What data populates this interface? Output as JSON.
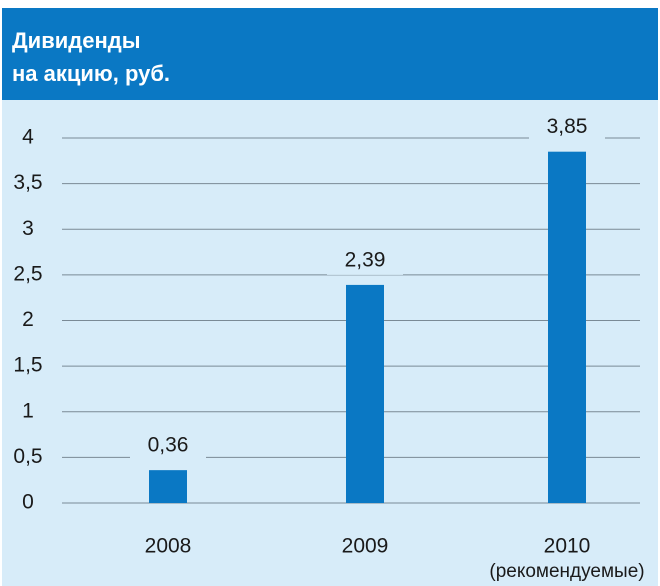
{
  "chart_data": {
    "type": "bar",
    "title_lines": [
      "Дивиденды",
      "на акцию, руб."
    ],
    "categories": [
      "2008",
      "2009",
      "2010"
    ],
    "category_notes": [
      null,
      null,
      "(рекомендуемые)"
    ],
    "values": [
      0.36,
      2.39,
      3.85
    ],
    "value_labels": [
      "0,36",
      "2,39",
      "3,85"
    ],
    "color": "#0a78c4",
    "ylim": [
      0,
      4
    ],
    "yticks": [
      0,
      {
        "value": 0.5,
        "label": "0,5"
      },
      1,
      {
        "value": 1.5,
        "label": "1,5"
      },
      2,
      {
        "value": 2.5,
        "label": "2,5"
      },
      3,
      {
        "value": 3.5,
        "label": "3,5"
      },
      4
    ],
    "grid": true
  }
}
